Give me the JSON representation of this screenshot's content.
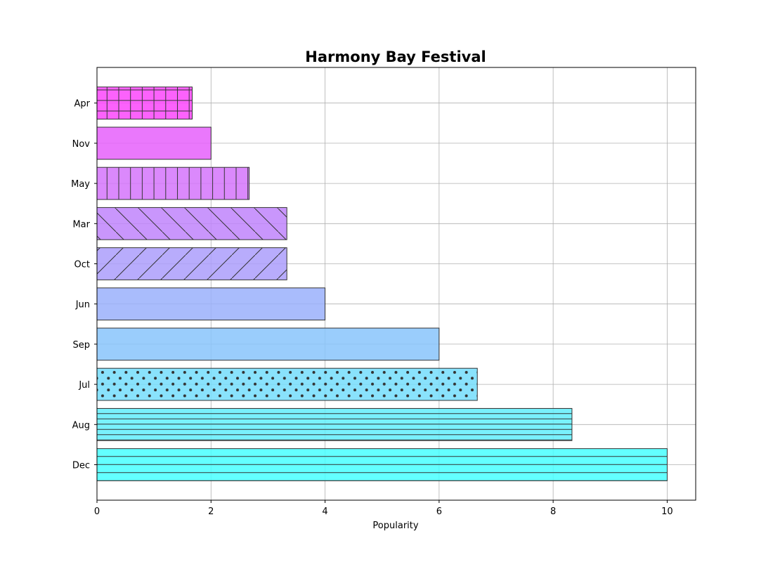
{
  "chart_data": {
    "type": "bar",
    "orientation": "horizontal",
    "title": "Harmony Bay Festival",
    "xlabel": "Popularity",
    "ylabel": "",
    "xlim": [
      0,
      10.5
    ],
    "x_ticks": [
      0,
      2,
      4,
      6,
      8,
      10
    ],
    "grid": true,
    "categories": [
      "Dec",
      "Aug",
      "Jul",
      "Sep",
      "Jun",
      "Oct",
      "Mar",
      "May",
      "Nov",
      "Apr"
    ],
    "values": [
      10,
      8.33,
      6.67,
      6,
      4,
      3.33,
      3.33,
      2.67,
      2,
      1.67
    ],
    "colors": [
      "#48ffff",
      "#62eefc",
      "#74ddfc",
      "#88c4fc",
      "#9ab0fc",
      "#ac9dfc",
      "#c084fc",
      "#d574fc",
      "#e660fc",
      "#fc46fc"
    ],
    "hatches": [
      "-",
      "--",
      "dots",
      "none",
      "none",
      "/",
      "\\",
      "|",
      "none",
      "+"
    ]
  }
}
